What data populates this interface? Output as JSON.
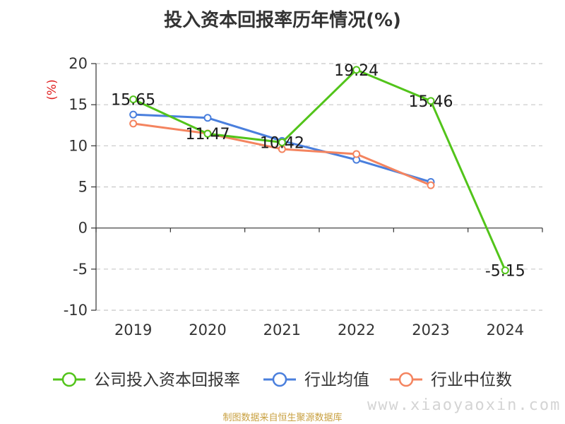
{
  "chart_data": {
    "type": "line",
    "title": "投入资本回报率历年情况(%)",
    "ylabel": "(%)",
    "xlabel": "",
    "categories": [
      "2019",
      "2020",
      "2021",
      "2022",
      "2023",
      "2024"
    ],
    "ylim": [
      -10,
      20
    ],
    "yticks": [
      20,
      15,
      10,
      5,
      0,
      -5,
      -10
    ],
    "grid": true,
    "legend_position": "bottom",
    "series": [
      {
        "name": "公司投入资本回报率",
        "color": "#52c41a",
        "values": [
          15.65,
          11.47,
          10.42,
          19.24,
          15.46,
          -5.15
        ],
        "labels": [
          "15.65",
          "11.47",
          "10.42",
          "19.24",
          "15.46",
          "-5.15"
        ]
      },
      {
        "name": "行业均值",
        "color": "#4a7fdd",
        "values": [
          13.8,
          13.4,
          10.6,
          8.3,
          5.6,
          null
        ]
      },
      {
        "name": "行业中位数",
        "color": "#f4845f",
        "values": [
          12.7,
          11.5,
          9.6,
          9.0,
          5.2,
          null
        ]
      }
    ]
  },
  "footer": {
    "source": "制图数据来自恒生聚源数据库",
    "watermark": "www.xiaoyaoxin.com"
  }
}
